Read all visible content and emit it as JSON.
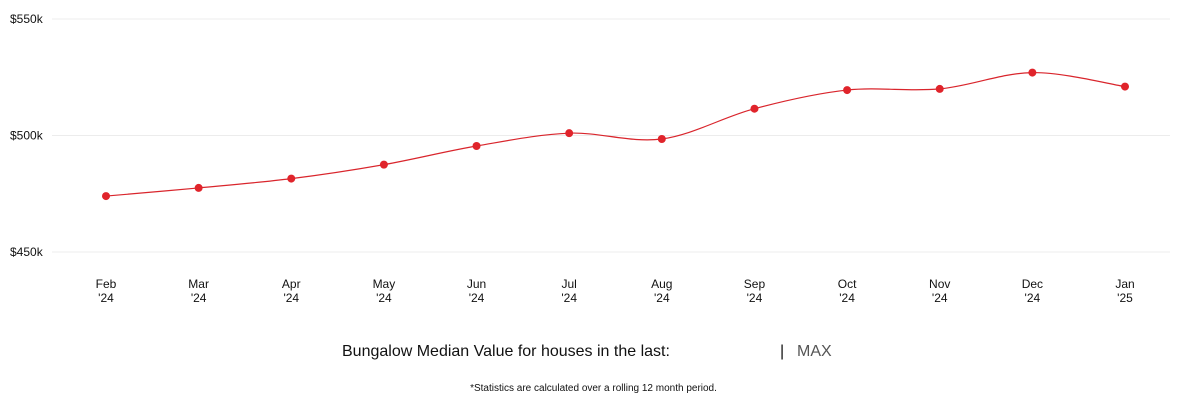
{
  "chart_data": {
    "type": "line",
    "x": [
      "Feb '24",
      "Mar '24",
      "Apr '24",
      "May '24",
      "Jun '24",
      "Jul '24",
      "Aug '24",
      "Sep '24",
      "Oct '24",
      "Nov '24",
      "Dec '24",
      "Jan '25"
    ],
    "x_tick_lines": [
      [
        "Feb",
        "'24"
      ],
      [
        "Mar",
        "'24"
      ],
      [
        "Apr",
        "'24"
      ],
      [
        "May",
        "'24"
      ],
      [
        "Jun",
        "'24"
      ],
      [
        "Jul",
        "'24"
      ],
      [
        "Aug",
        "'24"
      ],
      [
        "Sep",
        "'24"
      ],
      [
        "Oct",
        "'24"
      ],
      [
        "Nov",
        "'24"
      ],
      [
        "Dec",
        "'24"
      ],
      [
        "Jan",
        "'25"
      ]
    ],
    "series": [
      {
        "values": [
          474000,
          477500,
          481500,
          487500,
          495500,
          501000,
          498500,
          511500,
          519500,
          520000,
          527000,
          521000
        ]
      }
    ],
    "ylim": [
      450000,
      550000
    ],
    "y_ticks": [
      550000,
      500000,
      450000
    ],
    "y_tick_labels": [
      "$550k",
      "$500k",
      "$450k"
    ],
    "grid": true,
    "line_color": "#d9252c",
    "marker_color": "#e0242b"
  },
  "footer": {
    "label": "Bungalow Median Value for houses in the last:",
    "separator": "|",
    "range_option": "MAX",
    "note": "*Statistics are calculated over a rolling 12 month period."
  }
}
